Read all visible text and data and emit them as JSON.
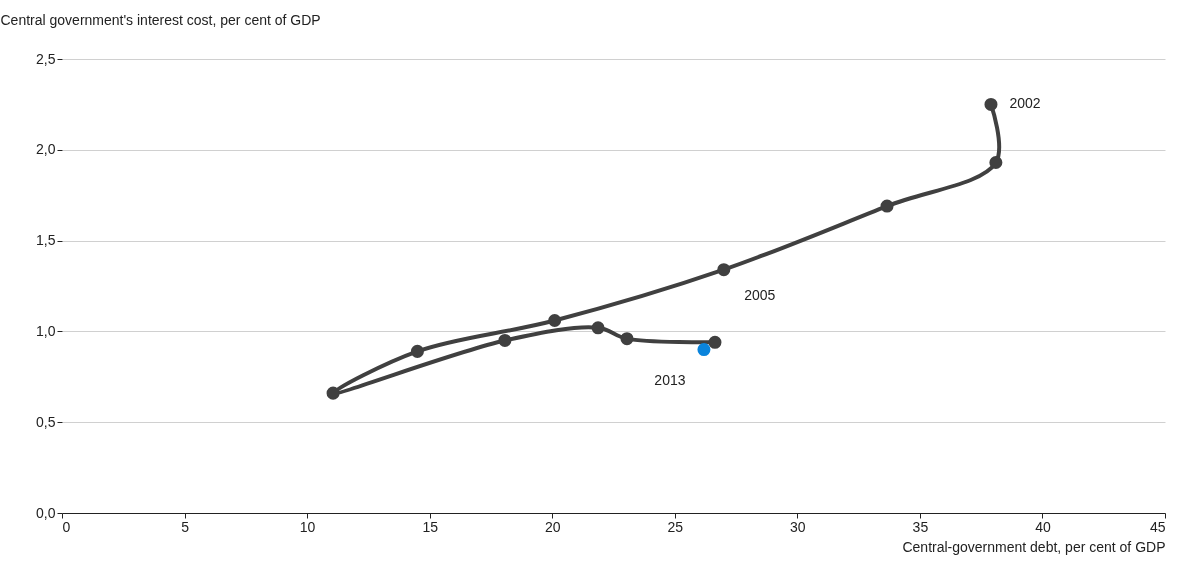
{
  "chart_data": {
    "type": "line",
    "ylabel": "Central government's interest cost, per cent of GDP",
    "xlabel": "Central-government debt, per cent of GDP",
    "xlim": [
      0,
      45
    ],
    "xticks": [
      0,
      5,
      10,
      15,
      20,
      25,
      30,
      35,
      40,
      45
    ],
    "ylim": [
      0,
      2.5
    ],
    "yticks": [
      {
        "value": 0,
        "label": "0,0"
      },
      {
        "value": 0.5,
        "label": "0,5"
      },
      {
        "value": 1,
        "label": "1,0"
      },
      {
        "value": 1.5,
        "label": "1,5"
      },
      {
        "value": 2,
        "label": "2,0"
      },
      {
        "value": 2.5,
        "label": "2,5"
      }
    ],
    "grid": "y",
    "legend": false,
    "marker": "circle",
    "line_style": "solid",
    "series": [
      {
        "color": "#404040",
        "x": [
          37.9,
          38.1,
          33.66,
          27.0,
          20.1,
          14.5,
          11.06,
          18.07,
          21.87,
          23.05,
          26.64
        ],
        "values": [
          2.25,
          1.93,
          1.69,
          1.34,
          1.06,
          0.89,
          0.66,
          0.95,
          1.02,
          0.96,
          0.94
        ]
      },
      {
        "type": "scatter",
        "color": "#0a84dc",
        "x": [
          26.19
        ],
        "values": [
          0.9
        ]
      }
    ],
    "annotations": [
      {
        "text": "2002",
        "x": 37.9,
        "y": 2.25
      },
      {
        "text": "2005",
        "x": 27.0,
        "y": 1.34
      },
      {
        "text": "2013",
        "x": 26.19,
        "y": 0.9
      }
    ]
  }
}
